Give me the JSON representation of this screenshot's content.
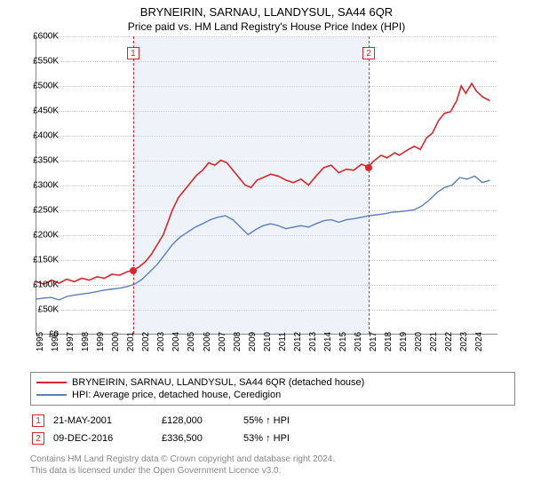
{
  "title": "BRYNEIRIN, SARNAU, LLANDYSUL, SA44 6QR",
  "subtitle": "Price paid vs. HM Land Registry's House Price Index (HPI)",
  "chart": {
    "type": "line",
    "xlim": [
      1995,
      2025.5
    ],
    "ylim": [
      0,
      600000
    ],
    "ytick_step": 50000,
    "ytick_prefix": "£",
    "ytick_suffix": "K",
    "ytick_divisor": 1000,
    "xticks": [
      1995,
      1996,
      1997,
      1998,
      1999,
      2000,
      2001,
      2002,
      2003,
      2004,
      2005,
      2006,
      2007,
      2008,
      2009,
      2010,
      2011,
      2012,
      2013,
      2014,
      2015,
      2016,
      2017,
      2018,
      2019,
      2020,
      2021,
      2022,
      2023,
      2024
    ],
    "grid_color": "#cccccc",
    "background_color": "#ffffff",
    "band_color": "#eef3f9",
    "band": [
      2001.39,
      2016.94
    ],
    "series": [
      {
        "name": "BRYNEIRIN, SARNAU, LLANDYSUL, SA44 6QR (detached house)",
        "color": "#d8262a",
        "line_width": 1.6,
        "data": [
          [
            1995.0,
            105000
          ],
          [
            1995.5,
            100000
          ],
          [
            1996.0,
            108000
          ],
          [
            1996.5,
            102000
          ],
          [
            1997.0,
            110000
          ],
          [
            1997.5,
            105000
          ],
          [
            1998.0,
            112000
          ],
          [
            1998.5,
            108000
          ],
          [
            1999.0,
            115000
          ],
          [
            1999.5,
            112000
          ],
          [
            2000.0,
            120000
          ],
          [
            2000.5,
            118000
          ],
          [
            2001.0,
            125000
          ],
          [
            2001.39,
            128000
          ],
          [
            2001.8,
            135000
          ],
          [
            2002.2,
            145000
          ],
          [
            2002.6,
            160000
          ],
          [
            2003.0,
            180000
          ],
          [
            2003.4,
            200000
          ],
          [
            2003.7,
            225000
          ],
          [
            2004.0,
            250000
          ],
          [
            2004.4,
            275000
          ],
          [
            2004.8,
            290000
          ],
          [
            2005.2,
            305000
          ],
          [
            2005.6,
            320000
          ],
          [
            2006.0,
            330000
          ],
          [
            2006.4,
            345000
          ],
          [
            2006.8,
            340000
          ],
          [
            2007.2,
            350000
          ],
          [
            2007.6,
            345000
          ],
          [
            2008.0,
            330000
          ],
          [
            2008.4,
            315000
          ],
          [
            2008.8,
            300000
          ],
          [
            2009.2,
            295000
          ],
          [
            2009.6,
            310000
          ],
          [
            2010.0,
            315000
          ],
          [
            2010.5,
            322000
          ],
          [
            2011.0,
            318000
          ],
          [
            2011.5,
            310000
          ],
          [
            2012.0,
            305000
          ],
          [
            2012.5,
            312000
          ],
          [
            2013.0,
            300000
          ],
          [
            2013.5,
            318000
          ],
          [
            2014.0,
            335000
          ],
          [
            2014.5,
            340000
          ],
          [
            2015.0,
            325000
          ],
          [
            2015.5,
            332000
          ],
          [
            2016.0,
            330000
          ],
          [
            2016.5,
            342000
          ],
          [
            2016.94,
            336500
          ],
          [
            2017.3,
            348000
          ],
          [
            2017.8,
            360000
          ],
          [
            2018.2,
            355000
          ],
          [
            2018.7,
            365000
          ],
          [
            2019.0,
            360000
          ],
          [
            2019.5,
            370000
          ],
          [
            2020.0,
            378000
          ],
          [
            2020.4,
            372000
          ],
          [
            2020.8,
            395000
          ],
          [
            2021.2,
            405000
          ],
          [
            2021.6,
            430000
          ],
          [
            2022.0,
            445000
          ],
          [
            2022.4,
            448000
          ],
          [
            2022.8,
            470000
          ],
          [
            2023.1,
            500000
          ],
          [
            2023.4,
            485000
          ],
          [
            2023.8,
            505000
          ],
          [
            2024.1,
            490000
          ],
          [
            2024.5,
            478000
          ],
          [
            2025.0,
            470000
          ]
        ]
      },
      {
        "name": "HPI: Average price, detached house, Ceredigion",
        "color": "#5a7fbd",
        "line_width": 1.4,
        "data": [
          [
            1995.0,
            70000
          ],
          [
            1995.5,
            72000
          ],
          [
            1996.0,
            73000
          ],
          [
            1996.5,
            68000
          ],
          [
            1997.0,
            75000
          ],
          [
            1997.5,
            78000
          ],
          [
            1998.0,
            80000
          ],
          [
            1998.5,
            82000
          ],
          [
            1999.0,
            85000
          ],
          [
            1999.5,
            88000
          ],
          [
            2000.0,
            90000
          ],
          [
            2000.5,
            92000
          ],
          [
            2001.0,
            95000
          ],
          [
            2001.5,
            100000
          ],
          [
            2002.0,
            110000
          ],
          [
            2002.5,
            125000
          ],
          [
            2003.0,
            140000
          ],
          [
            2003.5,
            160000
          ],
          [
            2004.0,
            180000
          ],
          [
            2004.5,
            195000
          ],
          [
            2005.0,
            205000
          ],
          [
            2005.5,
            215000
          ],
          [
            2006.0,
            222000
          ],
          [
            2006.5,
            230000
          ],
          [
            2007.0,
            235000
          ],
          [
            2007.5,
            238000
          ],
          [
            2008.0,
            230000
          ],
          [
            2008.5,
            215000
          ],
          [
            2009.0,
            200000
          ],
          [
            2009.5,
            210000
          ],
          [
            2010.0,
            218000
          ],
          [
            2010.5,
            222000
          ],
          [
            2011.0,
            218000
          ],
          [
            2011.5,
            212000
          ],
          [
            2012.0,
            215000
          ],
          [
            2012.5,
            218000
          ],
          [
            2013.0,
            215000
          ],
          [
            2013.5,
            222000
          ],
          [
            2014.0,
            228000
          ],
          [
            2014.5,
            230000
          ],
          [
            2015.0,
            225000
          ],
          [
            2015.5,
            230000
          ],
          [
            2016.0,
            232000
          ],
          [
            2016.5,
            235000
          ],
          [
            2017.0,
            238000
          ],
          [
            2017.5,
            240000
          ],
          [
            2018.0,
            242000
          ],
          [
            2018.5,
            245000
          ],
          [
            2019.0,
            246000
          ],
          [
            2019.5,
            248000
          ],
          [
            2020.0,
            250000
          ],
          [
            2020.5,
            258000
          ],
          [
            2021.0,
            270000
          ],
          [
            2021.5,
            285000
          ],
          [
            2022.0,
            295000
          ],
          [
            2022.5,
            300000
          ],
          [
            2023.0,
            315000
          ],
          [
            2023.5,
            312000
          ],
          [
            2024.0,
            318000
          ],
          [
            2024.5,
            305000
          ],
          [
            2025.0,
            310000
          ]
        ]
      }
    ],
    "markers": [
      {
        "n": "1",
        "x": 2001.39,
        "y": 128000,
        "color": "#d8262a"
      },
      {
        "n": "2",
        "x": 2016.94,
        "y": 336500,
        "color": "#d8262a"
      }
    ]
  },
  "legend": [
    {
      "color": "#d8262a",
      "label": "BRYNEIRIN, SARNAU, LLANDYSUL, SA44 6QR (detached house)"
    },
    {
      "color": "#5a7fbd",
      "label": "HPI: Average price, detached house, Ceredigion"
    }
  ],
  "sales": [
    {
      "n": "1",
      "color": "#d8262a",
      "date": "21-MAY-2001",
      "price": "£128,000",
      "pct": "55% ↑ HPI"
    },
    {
      "n": "2",
      "color": "#d8262a",
      "date": "09-DEC-2016",
      "price": "£336,500",
      "pct": "53% ↑ HPI"
    }
  ],
  "footer_l1": "Contains HM Land Registry data © Crown copyright and database right 2024.",
  "footer_l2": "This data is licensed under the Open Government Licence v3.0."
}
